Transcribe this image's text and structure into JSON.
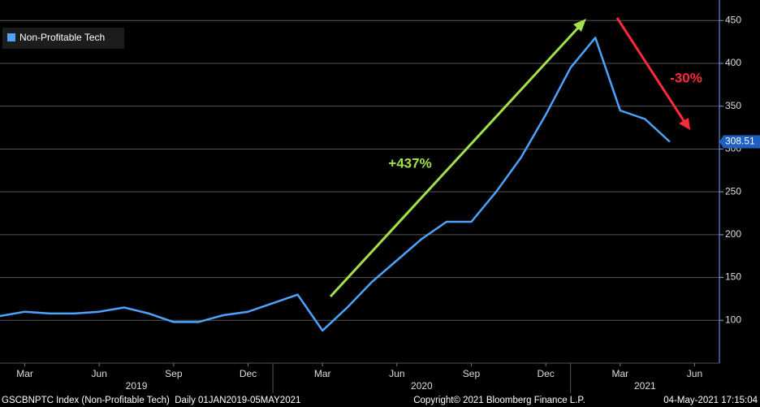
{
  "chart_data": {
    "type": "line",
    "legend": "Non-Profitable Tech",
    "x": [
      "2019-02",
      "2019-03",
      "2019-04",
      "2019-05",
      "2019-06",
      "2019-07",
      "2019-08",
      "2019-09",
      "2019-10",
      "2019-11",
      "2019-12",
      "2020-01",
      "2020-02",
      "2020-03",
      "2020-04",
      "2020-05",
      "2020-06",
      "2020-07",
      "2020-08",
      "2020-09",
      "2020-10",
      "2020-11",
      "2020-12",
      "2021-01",
      "2021-02",
      "2021-03",
      "2021-04",
      "2021-05"
    ],
    "series": [
      {
        "name": "Non-Profitable Tech",
        "color": "#4da3ff",
        "values": [
          105,
          110,
          108,
          108,
          110,
          115,
          108,
          98,
          98,
          106,
          110,
          120,
          130,
          88,
          115,
          145,
          170,
          195,
          215,
          215,
          250,
          290,
          340,
          395,
          430,
          345,
          335,
          308.51
        ]
      }
    ],
    "last_value_label": "308.51",
    "xlim": [
      "2019-02",
      "2021-07"
    ],
    "xticks": [
      {
        "value": "2019-03",
        "label": "Mar"
      },
      {
        "value": "2019-06",
        "label": "Jun"
      },
      {
        "value": "2019-09",
        "label": "Sep"
      },
      {
        "value": "2019-12",
        "label": "Dec"
      },
      {
        "value": "2020-03",
        "label": "Mar"
      },
      {
        "value": "2020-06",
        "label": "Jun"
      },
      {
        "value": "2020-09",
        "label": "Sep"
      },
      {
        "value": "2020-12",
        "label": "Dec"
      },
      {
        "value": "2021-03",
        "label": "Mar"
      },
      {
        "value": "2021-06",
        "label": "Jun"
      }
    ],
    "years": [
      "2019",
      "2020",
      "2021"
    ],
    "ylim": [
      50,
      474
    ],
    "yticks": [
      100,
      150,
      200,
      250,
      300,
      350,
      400,
      450
    ],
    "grid": true,
    "annotations": [
      "+437%",
      "-30%"
    ],
    "footer": [
      "GSCBNPTC Index (Non-Profitable Tech)  Daily 01JAN2019-05MAY2021",
      "Copyright© 2021 Bloomberg Finance L.P.",
      "04-May-2021 17:15:04"
    ]
  }
}
